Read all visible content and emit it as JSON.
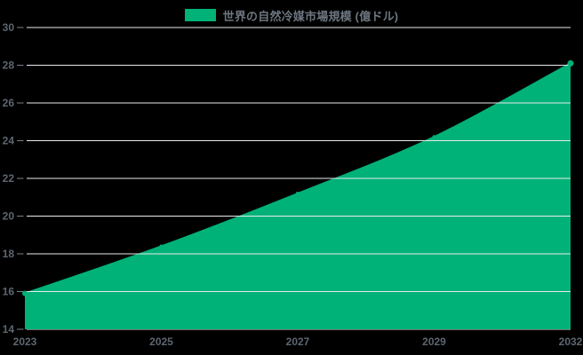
{
  "chart_data": {
    "type": "area",
    "legend": "世界の自然冷媒市場規模 (億ドル)",
    "categories": [
      "2023",
      "2025",
      "2027",
      "2029",
      "2032"
    ],
    "values": [
      15.9,
      18.4,
      21.2,
      24.2,
      28.1
    ],
    "yticks": [
      14,
      16,
      18,
      20,
      22,
      24,
      26,
      28,
      30
    ],
    "ylim": [
      14,
      30
    ],
    "grid": true,
    "legend_position": "top-center",
    "colors": {
      "series": "#00b277",
      "background": "#000000",
      "gridline": "#e8ebee",
      "tick_mark": "#76808a",
      "axis_label": "#5d6670",
      "legend_text": "#6d7680"
    }
  }
}
